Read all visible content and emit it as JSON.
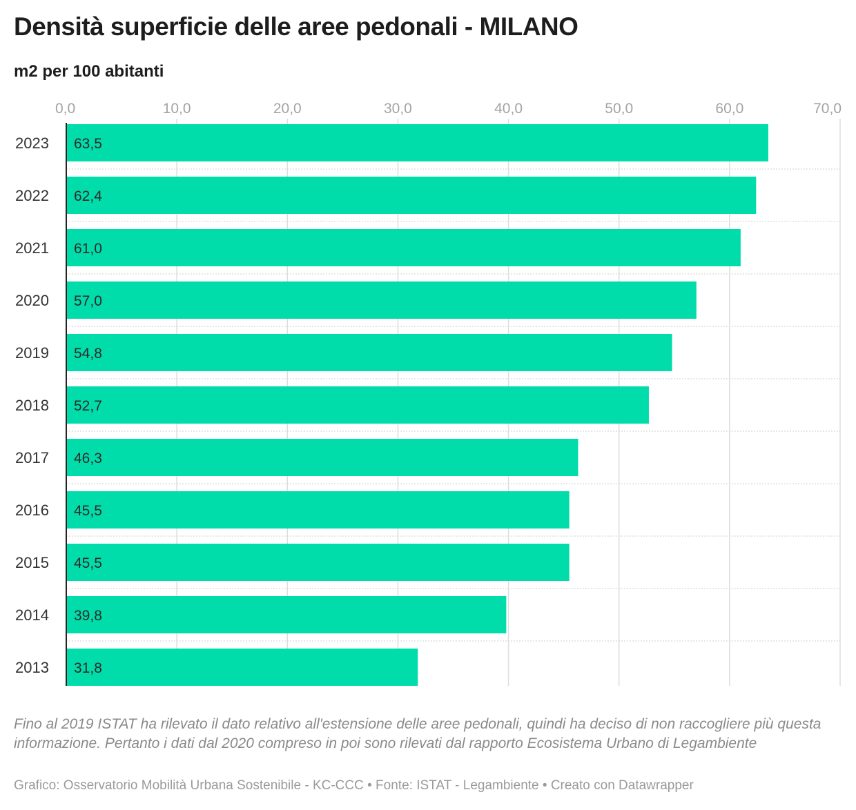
{
  "header": {
    "title": "Densità superficie delle aree pedonali - MILANO",
    "subtitle": "m2 per 100 abitanti"
  },
  "chart_data": {
    "type": "bar",
    "orientation": "horizontal",
    "title": "Densità superficie delle aree pedonali - MILANO",
    "subtitle": "m2 per 100 abitanti",
    "categories": [
      "2023",
      "2022",
      "2021",
      "2020",
      "2019",
      "2018",
      "2017",
      "2016",
      "2015",
      "2014",
      "2013"
    ],
    "values": [
      63.5,
      62.4,
      61.0,
      57.0,
      54.8,
      52.7,
      46.3,
      45.5,
      45.5,
      39.8,
      31.8
    ],
    "value_labels": [
      "63,5",
      "62,4",
      "61,0",
      "57,0",
      "54,8",
      "52,7",
      "46,3",
      "45,5",
      "45,5",
      "39,8",
      "31,8"
    ],
    "xlim": [
      0,
      70
    ],
    "ticks": [
      0,
      10,
      20,
      30,
      40,
      50,
      60,
      70
    ],
    "tick_labels": [
      "0,0",
      "10,0",
      "20,0",
      "30,0",
      "40,0",
      "50,0",
      "60,0",
      "70,0"
    ],
    "axis_position": "top",
    "grid": true,
    "legend": "none",
    "colors": {
      "bar": "#00dcaa",
      "grid": "#dddddd",
      "axis": "#222222"
    }
  },
  "footer": {
    "note": "Fino al 2019 ISTAT ha rilevato il dato relativo all'estensione delle aree pedonali, quindi ha deciso di non raccogliere più questa informazione. Pertanto i dati dal 2020 compreso in poi sono rilevati dal rapporto Ecosistema Urbano di Legambiente",
    "credits": "Grafico: Osservatorio Mobilità Urbana Sostenibile - KC-CCC • Fonte: ISTAT - Legambiente • Creato con Datawrapper"
  }
}
